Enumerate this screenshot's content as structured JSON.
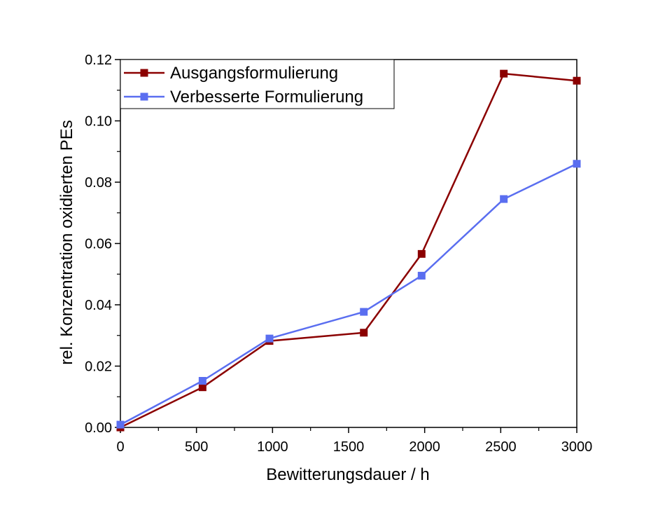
{
  "chart_data": {
    "type": "line",
    "xlabel": "Bewitterungsdauer / h",
    "ylabel": "rel. Konzentration oxidierten PEs",
    "xlim": [
      0,
      3000
    ],
    "ylim": [
      0,
      0.12
    ],
    "xticks": [
      0,
      500,
      1000,
      1500,
      2000,
      2500,
      3000
    ],
    "xtick_labels": [
      "0",
      "500",
      "1000",
      "1500",
      "2000",
      "2500",
      "3000"
    ],
    "yticks": [
      0,
      0.02,
      0.04,
      0.06,
      0.08,
      0.1,
      0.12
    ],
    "ytick_labels": [
      "0.00",
      "0.02",
      "0.04",
      "0.06",
      "0.08",
      "0.10",
      "0.12"
    ],
    "grid": false,
    "legend_position": "top-left",
    "series": [
      {
        "name": "Ausgangsformulierung",
        "color": "#8b0000",
        "marker": "square",
        "x": [
          0,
          540,
          980,
          1600,
          1980,
          2520,
          3000
        ],
        "y": [
          0.0,
          0.0131,
          0.0282,
          0.0309,
          0.0566,
          0.1154,
          0.1131
        ]
      },
      {
        "name": "Verbesserte Formulierung",
        "color": "#5a6ef0",
        "marker": "square",
        "x": [
          0,
          540,
          980,
          1600,
          1980,
          2520,
          3000
        ],
        "y": [
          0.0009,
          0.0152,
          0.029,
          0.0377,
          0.0495,
          0.0745,
          0.086
        ]
      }
    ]
  }
}
